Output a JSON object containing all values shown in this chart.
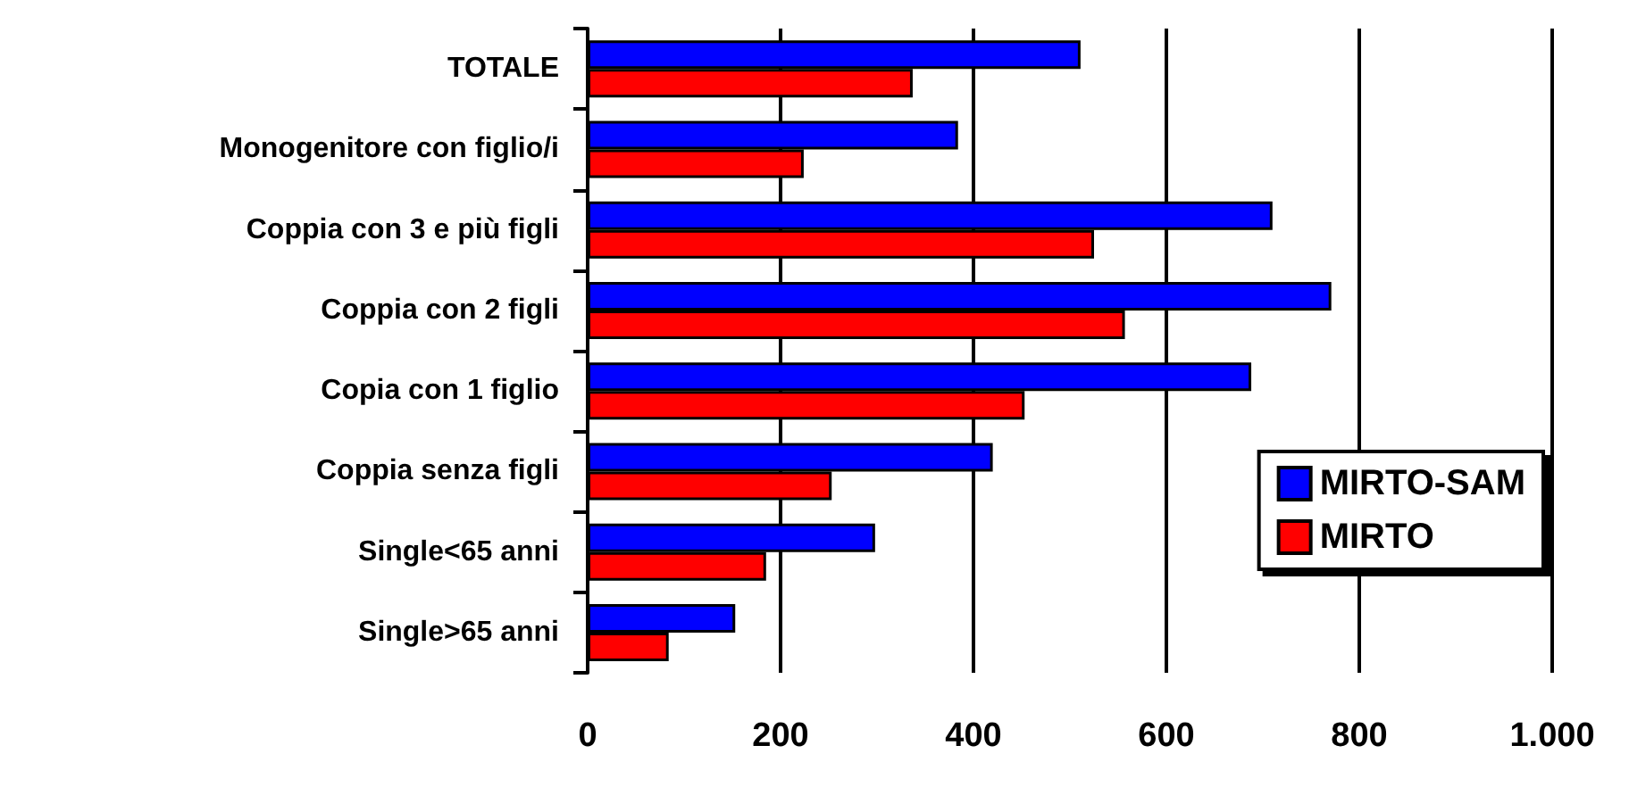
{
  "chart_data": {
    "type": "bar",
    "orientation": "horizontal",
    "categories": [
      "TOTALE",
      "Monogenitore con figlio/i",
      "Coppia con 3 e più figli",
      "Coppia con 2 figli",
      "Copia con 1 figlio",
      "Coppia senza figli",
      "Single<65 anni",
      "Single>65 anni"
    ],
    "series": [
      {
        "name": "MIRTO-SAM",
        "color": "#0000ff",
        "values": [
          511,
          384,
          710,
          771,
          688,
          420,
          298,
          153
        ]
      },
      {
        "name": "MIRTO",
        "color": "#ff0000",
        "values": [
          337,
          224,
          525,
          557,
          453,
          253,
          185,
          84
        ]
      }
    ],
    "xlim": [
      0,
      1000
    ],
    "xticks": [
      0,
      200,
      400,
      600,
      800,
      {
        "value": 1000,
        "label": "1.000"
      }
    ],
    "grid": "x",
    "legend": "right"
  }
}
